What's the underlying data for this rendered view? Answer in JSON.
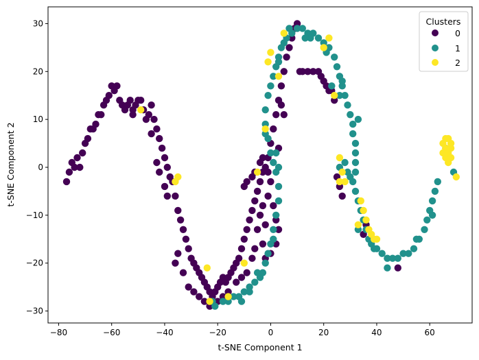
{
  "chart_data": {
    "type": "scatter",
    "title": "",
    "xlabel": "t-SNE Component 1",
    "ylabel": "t-SNE Component 2",
    "xlim": [
      -84,
      76
    ],
    "ylim": [
      -32.5,
      33.5
    ],
    "xticks": [
      -80,
      -60,
      -40,
      -20,
      0,
      20,
      40,
      60
    ],
    "yticks": [
      -30,
      -20,
      -10,
      0,
      10,
      20,
      30
    ],
    "grid": false,
    "legend": {
      "title": "Clusters",
      "placement": "top-right"
    },
    "series": [
      {
        "name": "0",
        "color": "#440154",
        "points": [
          [
            -77,
            -3
          ],
          [
            -76,
            -1
          ],
          [
            -75,
            1
          ],
          [
            -74,
            0
          ],
          [
            -73,
            2
          ],
          [
            -72,
            0
          ],
          [
            -71,
            3
          ],
          [
            -70,
            5
          ],
          [
            -69,
            6
          ],
          [
            -68,
            8
          ],
          [
            -67,
            8
          ],
          [
            -66,
            9
          ],
          [
            -65,
            11
          ],
          [
            -64,
            11
          ],
          [
            -63,
            13
          ],
          [
            -62,
            14
          ],
          [
            -61,
            15
          ],
          [
            -60,
            17
          ],
          [
            -59,
            16
          ],
          [
            -58,
            17
          ],
          [
            -57,
            14
          ],
          [
            -56,
            13
          ],
          [
            -55,
            12
          ],
          [
            -54,
            13
          ],
          [
            -53,
            14
          ],
          [
            -52,
            12
          ],
          [
            -51,
            13
          ],
          [
            -50,
            14
          ],
          [
            -49,
            14
          ],
          [
            -48,
            12
          ],
          [
            -47,
            10
          ],
          [
            -46,
            11
          ],
          [
            -45,
            13
          ],
          [
            -44,
            10
          ],
          [
            -43,
            8
          ],
          [
            -42,
            6
          ],
          [
            -41,
            4
          ],
          [
            -40,
            2
          ],
          [
            -39,
            0
          ],
          [
            -38,
            -2
          ],
          [
            -37,
            -3
          ],
          [
            -36,
            -6
          ],
          [
            -35,
            -9
          ],
          [
            -34,
            -11
          ],
          [
            -33,
            -13
          ],
          [
            -32,
            -15
          ],
          [
            -31,
            -17
          ],
          [
            -30,
            -19
          ],
          [
            -29,
            -20
          ],
          [
            -28,
            -21
          ],
          [
            -27,
            -22
          ],
          [
            -26,
            -23
          ],
          [
            -25,
            -24
          ],
          [
            -24,
            -25
          ],
          [
            -23,
            -26
          ],
          [
            -22,
            -27
          ],
          [
            -21,
            -26
          ],
          [
            -20,
            -25
          ],
          [
            -19,
            -24
          ],
          [
            -18,
            -23
          ],
          [
            -17,
            -24
          ],
          [
            -16,
            -23
          ],
          [
            -15,
            -22
          ],
          [
            -14,
            -21
          ],
          [
            -13,
            -20
          ],
          [
            -12,
            -19
          ],
          [
            -11,
            -17
          ],
          [
            -10,
            -15
          ],
          [
            -9,
            -13
          ],
          [
            -8,
            -11
          ],
          [
            -7,
            -9
          ],
          [
            -6,
            -7
          ],
          [
            -5,
            -5
          ],
          [
            -4,
            -3
          ],
          [
            -3,
            -1
          ],
          [
            -2,
            0
          ],
          [
            -1,
            2
          ],
          [
            0,
            5
          ],
          [
            1,
            8
          ],
          [
            2,
            11
          ],
          [
            3,
            14
          ],
          [
            4,
            17
          ],
          [
            5,
            20
          ],
          [
            6,
            23
          ],
          [
            7,
            25
          ],
          [
            8,
            27
          ],
          [
            9,
            29
          ],
          [
            10,
            30
          ],
          [
            11,
            20
          ],
          [
            12,
            20
          ],
          [
            14,
            20
          ],
          [
            16,
            20
          ],
          [
            18,
            20
          ],
          [
            19,
            19
          ],
          [
            20,
            18
          ],
          [
            21,
            17
          ],
          [
            22,
            16
          ],
          [
            23,
            16
          ],
          [
            24,
            14
          ],
          [
            -45,
            7
          ],
          [
            -43,
            1
          ],
          [
            -42,
            -1
          ],
          [
            -40,
            -4
          ],
          [
            -39,
            -6
          ],
          [
            -36,
            -20
          ],
          [
            -35,
            -18
          ],
          [
            -33,
            -22
          ],
          [
            -31,
            -25
          ],
          [
            -29,
            -26
          ],
          [
            -27,
            -27
          ],
          [
            -25,
            -28
          ],
          [
            -23,
            -29
          ],
          [
            -20,
            -28
          ],
          [
            -18,
            -27
          ],
          [
            -16,
            -26
          ],
          [
            -13,
            -24
          ],
          [
            -11,
            -23
          ],
          [
            -9,
            -22
          ],
          [
            -7,
            -19
          ],
          [
            -6,
            -17
          ],
          [
            -5,
            -13
          ],
          [
            -4,
            -10
          ],
          [
            -3,
            -8
          ],
          [
            -1,
            -6
          ],
          [
            1,
            -8
          ],
          [
            2,
            -11
          ],
          [
            3,
            -13
          ],
          [
            2,
            -16
          ],
          [
            0,
            -18
          ],
          [
            -2,
            -19
          ],
          [
            -3,
            -16
          ],
          [
            -2,
            -12
          ],
          [
            0,
            -3
          ],
          [
            -3,
            2
          ],
          [
            -6,
            -1
          ],
          [
            -9,
            -3
          ],
          [
            -10,
            -4
          ],
          [
            25,
            -2
          ],
          [
            26,
            -4
          ],
          [
            27,
            -6
          ],
          [
            35,
            -14
          ],
          [
            36,
            -12
          ],
          [
            48,
            -21
          ],
          [
            4,
            13
          ],
          [
            5,
            11
          ],
          [
            3,
            4
          ],
          [
            -1,
            -1
          ],
          [
            -4,
            1
          ],
          [
            -7,
            -2
          ],
          [
            -52,
            11
          ]
        ]
      },
      {
        "name": "1",
        "color": "#21918c",
        "points": [
          [
            -22,
            -28
          ],
          [
            -21,
            -29
          ],
          [
            -18,
            -28
          ],
          [
            -16,
            -28
          ],
          [
            -14,
            -27
          ],
          [
            -12,
            -27
          ],
          [
            -10,
            -26
          ],
          [
            -8,
            -25
          ],
          [
            -6,
            -24
          ],
          [
            -4,
            -23
          ],
          [
            -3,
            -22
          ],
          [
            -2,
            -20
          ],
          [
            -1,
            -18
          ],
          [
            0,
            -16
          ],
          [
            1,
            -13
          ],
          [
            2,
            -10
          ],
          [
            3,
            -7
          ],
          [
            3,
            -4
          ],
          [
            2,
            -1
          ],
          [
            1,
            1
          ],
          [
            0,
            3
          ],
          [
            -1,
            6
          ],
          [
            -2,
            9
          ],
          [
            -2,
            12
          ],
          [
            -1,
            15
          ],
          [
            0,
            17
          ],
          [
            1,
            19
          ],
          [
            2,
            21
          ],
          [
            3,
            23
          ],
          [
            4,
            25
          ],
          [
            5,
            26
          ],
          [
            6,
            27
          ],
          [
            8,
            28
          ],
          [
            10,
            29
          ],
          [
            12,
            29
          ],
          [
            14,
            28
          ],
          [
            16,
            28
          ],
          [
            18,
            27
          ],
          [
            20,
            26
          ],
          [
            22,
            25
          ],
          [
            24,
            23
          ],
          [
            25,
            21
          ],
          [
            26,
            19
          ],
          [
            27,
            17
          ],
          [
            28,
            15
          ],
          [
            29,
            13
          ],
          [
            30,
            11
          ],
          [
            31,
            9
          ],
          [
            31,
            7
          ],
          [
            32,
            5
          ],
          [
            32,
            3
          ],
          [
            32,
            1
          ],
          [
            32,
            -1
          ],
          [
            31,
            -3
          ],
          [
            32,
            -5
          ],
          [
            33,
            -7
          ],
          [
            34,
            -9
          ],
          [
            35,
            -11
          ],
          [
            36,
            -13
          ],
          [
            37,
            -15
          ],
          [
            38,
            -16
          ],
          [
            40,
            -17
          ],
          [
            42,
            -18
          ],
          [
            44,
            -19
          ],
          [
            46,
            -19
          ],
          [
            48,
            -19
          ],
          [
            50,
            -18
          ],
          [
            52,
            -18
          ],
          [
            54,
            -17
          ],
          [
            56,
            -15
          ],
          [
            58,
            -13
          ],
          [
            59,
            -11
          ],
          [
            60,
            -9
          ],
          [
            61,
            -7
          ],
          [
            62,
            -5
          ],
          [
            63,
            -3
          ],
          [
            66,
            4
          ],
          [
            69,
            -1
          ],
          [
            27,
            18
          ],
          [
            26,
            15
          ],
          [
            23,
            17
          ],
          [
            21,
            24
          ],
          [
            33,
            10
          ],
          [
            30,
            -2
          ],
          [
            33,
            -13
          ],
          [
            39,
            -17
          ],
          [
            44,
            -21
          ],
          [
            55,
            -15
          ],
          [
            61,
            -10
          ],
          [
            28,
            1
          ],
          [
            26,
            0
          ],
          [
            29,
            -1
          ],
          [
            15,
            27
          ],
          [
            13,
            27
          ],
          [
            7,
            29
          ],
          [
            3,
            22
          ],
          [
            -2,
            7
          ],
          [
            2,
            3
          ],
          [
            3,
            0
          ],
          [
            -8,
            -26
          ],
          [
            -11,
            -28
          ],
          [
            -5,
            -22
          ],
          [
            1,
            -15
          ]
        ]
      },
      {
        "name": "2",
        "color": "#fde725",
        "points": [
          [
            66,
            6
          ],
          [
            67,
            6
          ],
          [
            68,
            5
          ],
          [
            65,
            5
          ],
          [
            66,
            4
          ],
          [
            68,
            4
          ],
          [
            65,
            3
          ],
          [
            67,
            3
          ],
          [
            66,
            2
          ],
          [
            68,
            2
          ],
          [
            67,
            1
          ],
          [
            70,
            -2
          ],
          [
            26,
            2
          ],
          [
            27,
            -1
          ],
          [
            28,
            -3
          ],
          [
            34,
            -7
          ],
          [
            35,
            -9
          ],
          [
            36,
            -11
          ],
          [
            33,
            -12
          ],
          [
            37,
            -13
          ],
          [
            38,
            -14
          ],
          [
            39,
            -15
          ],
          [
            40,
            -15
          ],
          [
            -2,
            8
          ],
          [
            -1,
            22
          ],
          [
            0,
            24
          ],
          [
            5,
            28
          ],
          [
            22,
            27
          ],
          [
            24,
            15
          ],
          [
            20,
            25
          ],
          [
            -16,
            -27
          ],
          [
            -23,
            -28
          ],
          [
            -10,
            -20
          ],
          [
            -24,
            -21
          ],
          [
            -35,
            -2
          ],
          [
            -49,
            12
          ],
          [
            -36,
            -3
          ],
          [
            -5,
            -1
          ],
          [
            3,
            19
          ],
          [
            26,
            -3
          ]
        ]
      }
    ]
  }
}
